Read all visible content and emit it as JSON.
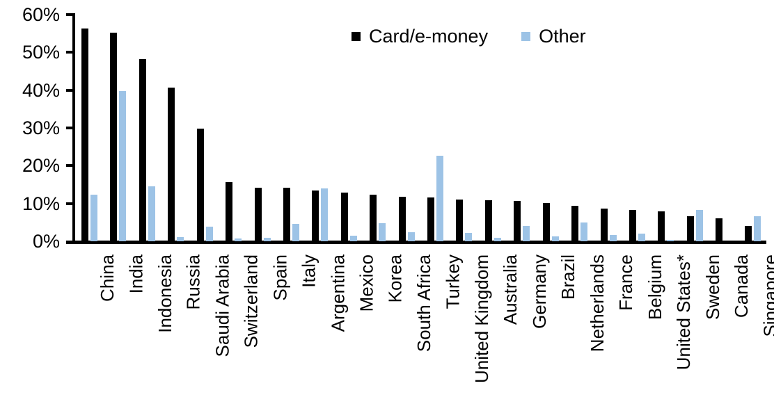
{
  "chart_data": {
    "type": "bar",
    "title": "",
    "xlabel": "",
    "ylabel": "",
    "ylim": [
      0,
      60
    ],
    "ytick_step": 10,
    "yticks": [
      "0%",
      "10%",
      "20%",
      "30%",
      "40%",
      "50%",
      "60%"
    ],
    "grid": false,
    "legend_position": "top-center",
    "categories": [
      "China",
      "India",
      "Indonesia",
      "Russia",
      "Saudi Arabia",
      "Switzerland",
      "Spain",
      "Italy",
      "Argentina",
      "Mexico",
      "Korea",
      "South Africa",
      "Turkey",
      "United Kingdom",
      "Australia",
      "Germany",
      "Brazil",
      "Netherlands",
      "France",
      "Belgium",
      "United States*",
      "Sweden",
      "Canada",
      "Singapore"
    ],
    "series": [
      {
        "name": "Card/e-money",
        "color": "#000000",
        "values": [
          56.3,
          55.2,
          48.3,
          40.6,
          29.9,
          15.6,
          14.2,
          14.2,
          13.4,
          12.9,
          12.3,
          11.8,
          11.6,
          11.1,
          10.9,
          10.7,
          10.1,
          9.4,
          8.7,
          8.3,
          8.0,
          6.6,
          6.0,
          4.0
        ]
      },
      {
        "name": "Other",
        "color": "#9DC3E6",
        "values": [
          12.3,
          39.8,
          14.5,
          1.1,
          3.8,
          0.7,
          1.0,
          4.6,
          13.9,
          1.5,
          4.7,
          2.4,
          22.6,
          2.3,
          1.0,
          4.0,
          1.2,
          5.0,
          1.6,
          2.1,
          0.3,
          8.2,
          0.0,
          6.6
        ]
      }
    ],
    "axis_color": "#000000",
    "background_color": "#FFFFFF"
  }
}
